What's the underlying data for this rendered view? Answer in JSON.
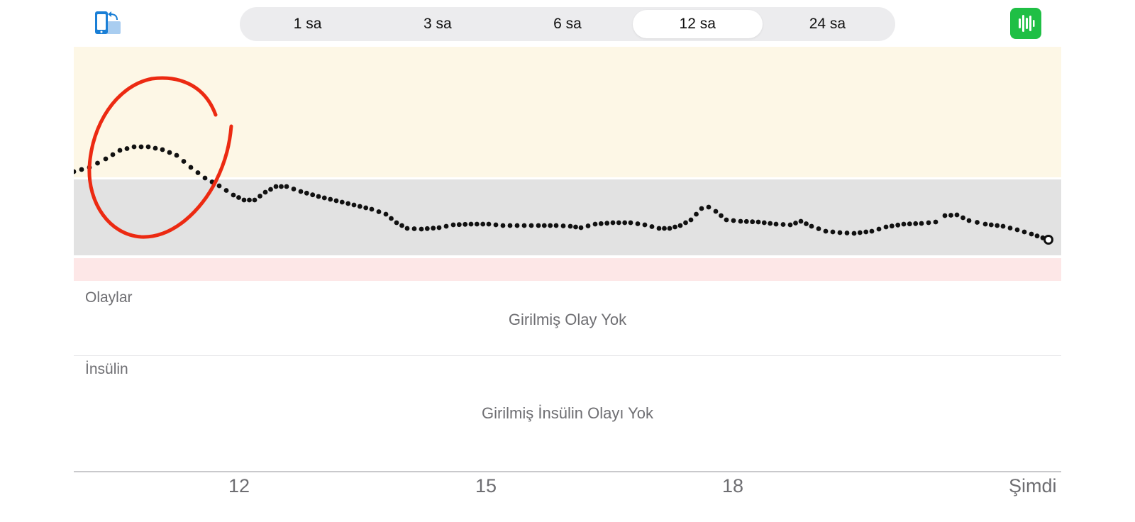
{
  "toolbar": {
    "rotate_icon": "phone-rotate-icon",
    "live_icon": "live-readings-icon",
    "colors": {
      "live_button": "#1fbf45",
      "rotate_icon": "#1a7fd6"
    }
  },
  "range_tabs": [
    {
      "label": "1 sa",
      "selected": false
    },
    {
      "label": "3 sa",
      "selected": false
    },
    {
      "label": "6 sa",
      "selected": false
    },
    {
      "label": "12 sa",
      "selected": true
    },
    {
      "label": "24 sa",
      "selected": false
    }
  ],
  "glucose_chart": {
    "colors": {
      "high_band": "#fdf7e6",
      "target_band": "#e2e2e2",
      "low_band": "#fde7e7",
      "points": "#111111",
      "annotation": "#ec2a12"
    },
    "annotation_icon": "hand-drawn-red-circle",
    "x_ticks": [
      "12",
      "15",
      "18",
      "Şimdi"
    ]
  },
  "events": {
    "label": "Olaylar",
    "empty_text": "Girilmiş Olay Yok"
  },
  "insulin": {
    "label": "İnsülin",
    "empty_text": "Girilmiş İnsülin Olayı Yok"
  }
}
